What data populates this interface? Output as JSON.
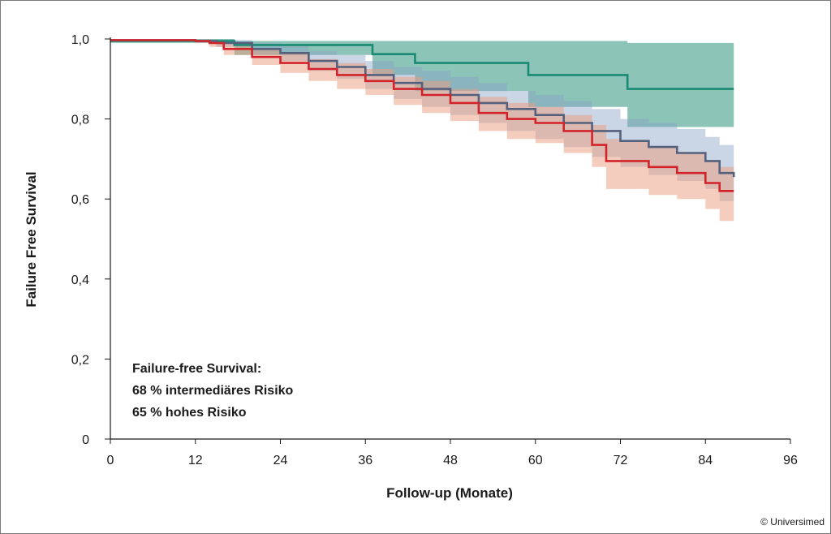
{
  "chart_data": {
    "type": "line",
    "step": true,
    "xlabel": "Follow-up (Monate)",
    "ylabel": "Failure Free Survival",
    "xlim": [
      0,
      96
    ],
    "ylim": [
      0,
      1.0
    ],
    "x_ticks": [
      0,
      12,
      24,
      36,
      48,
      60,
      72,
      84,
      96
    ],
    "y_ticks": [
      0,
      0.2,
      0.4,
      0.6,
      0.8,
      1.0
    ],
    "x_tick_labels": [
      "0",
      "12",
      "24",
      "36",
      "48",
      "60",
      "72",
      "84",
      "96"
    ],
    "y_tick_labels": [
      "0",
      "0,2",
      "0,4",
      "0,6",
      "0,8",
      "1,0"
    ],
    "grid": false,
    "series": [
      {
        "color": "#1a8a72",
        "band_color": "#1a8a72",
        "x": [
          0,
          17.5,
          37,
          43,
          59,
          73,
          88
        ],
        "y": [
          0.995,
          0.985,
          0.962,
          0.94,
          0.91,
          0.875,
          0.875
        ],
        "upper": [
          1.0,
          0.995,
          0.995,
          0.995,
          0.995,
          0.99,
          0.985
        ],
        "lower": [
          0.99,
          0.96,
          0.91,
          0.87,
          0.83,
          0.78,
          0.775
        ]
      },
      {
        "color": "#55607c",
        "band_color": "#8aa4c6",
        "x": [
          0,
          12,
          15,
          20,
          24,
          28,
          32,
          36,
          40,
          44,
          48,
          52,
          56,
          60,
          64,
          68,
          72,
          76,
          80,
          84,
          86,
          88
        ],
        "y": [
          0.997,
          0.995,
          0.99,
          0.975,
          0.965,
          0.945,
          0.93,
          0.91,
          0.89,
          0.875,
          0.86,
          0.84,
          0.825,
          0.81,
          0.79,
          0.77,
          0.745,
          0.73,
          0.715,
          0.695,
          0.665,
          0.655
        ],
        "upper": [
          1.0,
          0.998,
          0.997,
          0.99,
          0.985,
          0.97,
          0.96,
          0.945,
          0.93,
          0.92,
          0.905,
          0.89,
          0.87,
          0.86,
          0.845,
          0.825,
          0.8,
          0.79,
          0.775,
          0.755,
          0.735,
          0.725
        ],
        "lower": [
          0.994,
          0.99,
          0.98,
          0.96,
          0.945,
          0.92,
          0.9,
          0.875,
          0.85,
          0.83,
          0.81,
          0.79,
          0.77,
          0.75,
          0.73,
          0.705,
          0.68,
          0.66,
          0.645,
          0.625,
          0.595,
          0.585
        ]
      },
      {
        "color": "#d2232a",
        "band_color": "#ec9b7e",
        "x": [
          0,
          12,
          14,
          16,
          20,
          24,
          28,
          32,
          36,
          40,
          44,
          48,
          52,
          56,
          60,
          64,
          68,
          70,
          72,
          76,
          80,
          84,
          86,
          88
        ],
        "y": [
          0.997,
          0.995,
          0.99,
          0.975,
          0.955,
          0.94,
          0.925,
          0.91,
          0.895,
          0.875,
          0.86,
          0.84,
          0.815,
          0.8,
          0.79,
          0.77,
          0.735,
          0.695,
          0.695,
          0.68,
          0.665,
          0.64,
          0.62,
          0.62
        ],
        "upper": [
          1.0,
          0.998,
          0.997,
          0.99,
          0.975,
          0.965,
          0.95,
          0.94,
          0.925,
          0.905,
          0.895,
          0.875,
          0.855,
          0.84,
          0.83,
          0.81,
          0.785,
          0.75,
          0.745,
          0.73,
          0.715,
          0.695,
          0.68,
          0.675
        ],
        "lower": [
          0.994,
          0.99,
          0.98,
          0.96,
          0.935,
          0.915,
          0.895,
          0.875,
          0.86,
          0.835,
          0.815,
          0.795,
          0.77,
          0.75,
          0.74,
          0.715,
          0.68,
          0.625,
          0.625,
          0.61,
          0.6,
          0.575,
          0.545,
          0.535
        ]
      }
    ]
  },
  "annotation": {
    "title": "Failure-free Survival:",
    "line1_value": "68",
    "line1_text": " % intermediäres Risiko",
    "line2_value": "65",
    "line2_text": " % hohes Risiko"
  },
  "credit": "© Universimed"
}
